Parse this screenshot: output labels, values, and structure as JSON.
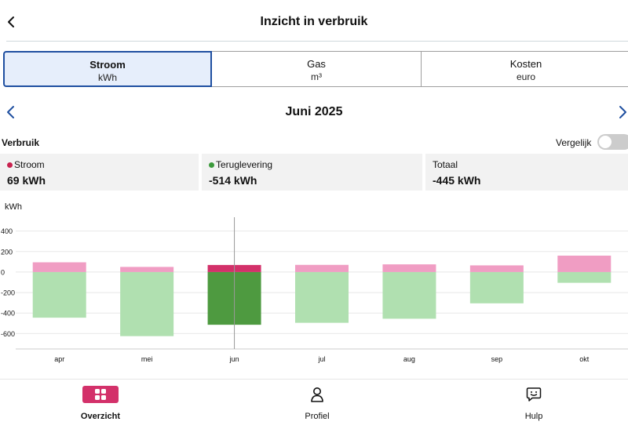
{
  "header": {
    "title": "Inzicht in verbruik"
  },
  "tabs": [
    {
      "label": "Stroom",
      "unit": "kWh",
      "selected": true
    },
    {
      "label": "Gas",
      "unit": "m³",
      "selected": false
    },
    {
      "label": "Kosten",
      "unit": "euro",
      "selected": false
    }
  ],
  "period": {
    "label": "Juni 2025"
  },
  "summary": {
    "title": "Verbruik",
    "compare_label": "Vergelijk",
    "cards": [
      {
        "label": "Stroom",
        "value": "69 kWh",
        "dot_color": "#c8224f"
      },
      {
        "label": "Teruglevering",
        "value": "-514 kWh",
        "dot_color": "#3c9a3c"
      },
      {
        "label": "Totaal",
        "value": "-445 kWh"
      }
    ]
  },
  "chart_data": {
    "type": "bar",
    "ylabel": "kWh",
    "ylim": [
      -750,
      550
    ],
    "yticks": [
      400,
      200,
      0,
      -200,
      -400,
      -600
    ],
    "yticklabels": [
      "400",
      "200",
      "0",
      "-200",
      "-400",
      "-600"
    ],
    "categories": [
      "apr",
      "mei",
      "jun",
      "jul",
      "aug",
      "sep",
      "okt"
    ],
    "series": [
      {
        "values": [
          95,
          50,
          69,
          70,
          75,
          65,
          160
        ],
        "color": "#f09dc3",
        "highlight_color": "#d3316a"
      },
      {
        "values": [
          -445,
          -625,
          -514,
          -495,
          -455,
          -305,
          -105
        ],
        "color": "#b0e0b0",
        "highlight_color": "#4e9a40"
      }
    ],
    "highlight_index": 2,
    "grid": true,
    "colors": {
      "grid": "#e8e8e8",
      "cursor": "#999999",
      "axis": "#cccccc"
    }
  },
  "bottom_nav": [
    {
      "label": "Overzicht",
      "icon": "grid-icon",
      "active": true
    },
    {
      "label": "Profiel",
      "icon": "person-icon",
      "active": false
    },
    {
      "label": "Hulp",
      "icon": "chat-help-icon",
      "active": false
    }
  ]
}
